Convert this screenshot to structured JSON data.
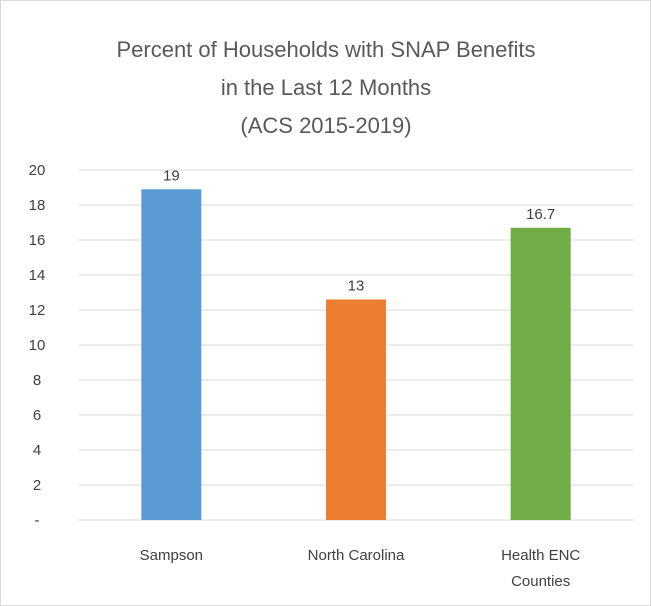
{
  "chart_data": {
    "type": "bar",
    "title_lines": [
      "Percent of Households with SNAP Benefits",
      "in the Last 12 Months",
      "(ACS 2015-2019)"
    ],
    "categories": [
      [
        "Sampson"
      ],
      [
        "North Carolina"
      ],
      [
        "Health ENC",
        "Counties"
      ]
    ],
    "values": [
      18.9,
      12.6,
      16.7
    ],
    "data_labels": [
      "19",
      "13",
      "16.7"
    ],
    "bar_colors": [
      "#5B9BD5",
      "#ED7D31",
      "#70AD47"
    ],
    "ylim": [
      0,
      20
    ],
    "y_ticks": [
      0,
      2,
      4,
      6,
      8,
      10,
      12,
      14,
      16,
      18,
      20
    ],
    "y_tick_labels": [
      "-",
      "2",
      "4",
      "6",
      "8",
      "10",
      "12",
      "14",
      "16",
      "18",
      "20"
    ],
    "grid": true,
    "legend": "none"
  }
}
